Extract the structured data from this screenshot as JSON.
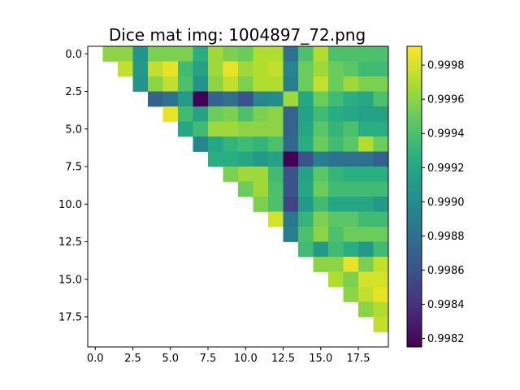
{
  "chart_data": {
    "type": "heatmap",
    "title": "Dice mat img: 1004897_72.png",
    "xlabel": "",
    "ylabel": "",
    "size": 20,
    "xlim": [
      -0.5,
      19.5
    ],
    "ylim": [
      19.5,
      -0.5
    ],
    "x_ticks": [
      0.0,
      2.5,
      5.0,
      7.5,
      10.0,
      12.5,
      15.0,
      17.5
    ],
    "x_tick_labels": [
      "0.0",
      "2.5",
      "5.0",
      "7.5",
      "10.0",
      "12.5",
      "15.0",
      "17.5"
    ],
    "y_ticks": [
      0.0,
      2.5,
      5.0,
      7.5,
      10.0,
      12.5,
      15.0,
      17.5
    ],
    "y_tick_labels": [
      "0.0",
      "2.5",
      "5.0",
      "7.5",
      "10.0",
      "12.5",
      "15.0",
      "17.5"
    ],
    "colormap": "viridis",
    "vmin": 0.99815,
    "vmax": 0.99991,
    "colorbar_ticks": [
      0.9982,
      0.9984,
      0.9986,
      0.9988,
      0.999,
      0.9992,
      0.9994,
      0.9996,
      0.9998
    ],
    "colorbar_tick_labels": [
      "0.9982",
      "0.9984",
      "0.9986",
      "0.9988",
      "0.9990",
      "0.9992",
      "0.9994",
      "0.9996",
      "0.9998"
    ],
    "grid": false,
    "legend": "colorbar-right",
    "matrix": [
      [
        null,
        0.9996,
        0.9996,
        0.99905,
        0.99955,
        0.99955,
        0.99955,
        0.99925,
        0.99965,
        0.99955,
        0.9995,
        0.9997,
        0.9997,
        0.9988,
        0.9994,
        0.9997,
        0.9994,
        0.9994,
        0.9994,
        0.9994
      ],
      [
        null,
        null,
        0.99975,
        0.9991,
        0.99975,
        0.99985,
        0.99935,
        0.99915,
        0.99965,
        0.99985,
        0.99965,
        0.9997,
        0.99975,
        0.99895,
        0.9995,
        0.99965,
        0.9995,
        0.99945,
        0.99935,
        0.99935
      ],
      [
        null,
        null,
        null,
        0.99905,
        0.9996,
        0.99975,
        0.9994,
        0.99905,
        0.9996,
        0.99975,
        0.99955,
        0.9997,
        0.9997,
        0.9989,
        0.9995,
        0.99975,
        0.9995,
        0.99965,
        0.99955,
        0.99955
      ],
      [
        null,
        null,
        null,
        null,
        0.9987,
        0.9988,
        0.9991,
        0.99815,
        0.9987,
        0.9988,
        0.9986,
        0.99895,
        0.999,
        0.99965,
        0.9992,
        0.9995,
        0.99935,
        0.99925,
        0.9992,
        0.9994
      ],
      [
        null,
        null,
        null,
        null,
        null,
        0.99985,
        0.99935,
        0.99915,
        0.9995,
        0.99955,
        0.9994,
        0.99955,
        0.9996,
        0.9987,
        0.99915,
        0.99935,
        0.99925,
        0.9992,
        0.99915,
        0.99915
      ],
      [
        null,
        null,
        null,
        null,
        null,
        null,
        0.9992,
        0.99935,
        0.99965,
        0.99965,
        0.9996,
        0.9996,
        0.9996,
        0.9987,
        0.9992,
        0.99945,
        0.9993,
        0.9994,
        0.99925,
        0.99925
      ],
      [
        null,
        null,
        null,
        null,
        null,
        null,
        null,
        0.99895,
        0.9992,
        0.9993,
        0.99935,
        0.9993,
        0.9994,
        0.99875,
        0.99925,
        0.9995,
        0.99935,
        0.99945,
        0.9997,
        0.9995
      ],
      [
        null,
        null,
        null,
        null,
        null,
        null,
        null,
        null,
        0.99925,
        0.99925,
        0.9992,
        0.9991,
        0.99915,
        0.99815,
        0.9986,
        0.9989,
        0.9988,
        0.9988,
        0.9988,
        0.9987
      ],
      [
        null,
        null,
        null,
        null,
        null,
        null,
        null,
        null,
        null,
        0.99955,
        0.99965,
        0.99965,
        0.99935,
        0.9986,
        0.99915,
        0.99945,
        0.9993,
        0.99925,
        0.99925,
        0.99925
      ],
      [
        null,
        null,
        null,
        null,
        null,
        null,
        null,
        null,
        null,
        null,
        0.9995,
        0.99965,
        0.9994,
        0.9986,
        0.9992,
        0.9995,
        0.99935,
        0.99935,
        0.99935,
        0.99935
      ],
      [
        null,
        null,
        null,
        null,
        null,
        null,
        null,
        null,
        null,
        null,
        null,
        0.99955,
        0.9994,
        0.9985,
        0.9991,
        0.99935,
        0.9992,
        0.9992,
        0.9992,
        0.9991
      ],
      [
        null,
        null,
        null,
        null,
        null,
        null,
        null,
        null,
        null,
        null,
        null,
        null,
        0.9998,
        0.99885,
        0.9993,
        0.99955,
        0.99945,
        0.99945,
        0.99935,
        0.99935
      ],
      [
        null,
        null,
        null,
        null,
        null,
        null,
        null,
        null,
        null,
        null,
        null,
        null,
        null,
        0.9989,
        0.9994,
        0.9996,
        0.9994,
        0.9995,
        0.9995,
        0.9995
      ],
      [
        null,
        null,
        null,
        null,
        null,
        null,
        null,
        null,
        null,
        null,
        null,
        null,
        null,
        null,
        0.99935,
        0.9991,
        0.99935,
        0.99925,
        0.9991,
        0.99935
      ],
      [
        null,
        null,
        null,
        null,
        null,
        null,
        null,
        null,
        null,
        null,
        null,
        null,
        null,
        null,
        null,
        0.9996,
        0.9996,
        0.99985,
        0.99955,
        0.99975
      ],
      [
        null,
        null,
        null,
        null,
        null,
        null,
        null,
        null,
        null,
        null,
        null,
        null,
        null,
        null,
        null,
        null,
        0.9997,
        0.99955,
        0.9998,
        0.9998
      ],
      [
        null,
        null,
        null,
        null,
        null,
        null,
        null,
        null,
        null,
        null,
        null,
        null,
        null,
        null,
        null,
        null,
        null,
        0.9996,
        0.99975,
        0.99985
      ],
      [
        null,
        null,
        null,
        null,
        null,
        null,
        null,
        null,
        null,
        null,
        null,
        null,
        null,
        null,
        null,
        null,
        null,
        null,
        0.9996,
        0.9997
      ],
      [
        null,
        null,
        null,
        null,
        null,
        null,
        null,
        null,
        null,
        null,
        null,
        null,
        null,
        null,
        null,
        null,
        null,
        null,
        null,
        0.99975
      ],
      [
        null,
        null,
        null,
        null,
        null,
        null,
        null,
        null,
        null,
        null,
        null,
        null,
        null,
        null,
        null,
        null,
        null,
        null,
        null,
        null
      ]
    ]
  }
}
